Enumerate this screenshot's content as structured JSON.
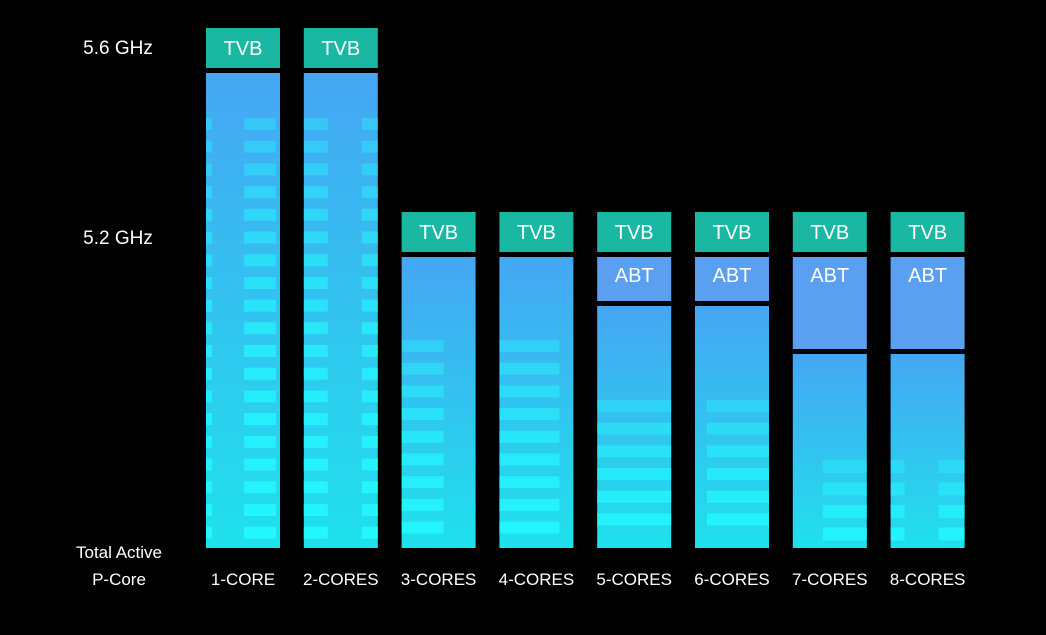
{
  "chart_data": {
    "type": "bar",
    "stacked": true,
    "title": "",
    "xlabel": "Total Active P-Core",
    "xlabel_lines": [
      "Total Active",
      "P-Core"
    ],
    "ylabel": "",
    "y_unit": "GHz",
    "y_ticks": [
      {
        "value": 5.6,
        "label": "5.6 GHz"
      },
      {
        "value": 5.2,
        "label": "5.2 GHz"
      }
    ],
    "categories": [
      "1-CORE",
      "2-CORES",
      "3-CORES",
      "4-CORES",
      "5-CORES",
      "6-CORES",
      "7-CORES",
      "8-CORES"
    ],
    "series": [
      {
        "name": "ABT",
        "values": [
          null,
          null,
          null,
          null,
          5.2,
          5.2,
          5.2,
          5.2
        ],
        "color": "#5a9ff0"
      },
      {
        "name": "TVB",
        "values": [
          5.6,
          5.6,
          5.2,
          5.2,
          5.2,
          5.2,
          5.2,
          5.2
        ],
        "color": "#1ab8a2"
      }
    ],
    "grid": false,
    "legend": "none"
  },
  "colors": {
    "background": "#000000",
    "tvb_cap": "#1ab8a2",
    "abt_segment": "#5a9ff0",
    "bar_top": "#45a6f3",
    "bar_bottom": "#1fe1ec",
    "stripe": "#25f8ff"
  }
}
